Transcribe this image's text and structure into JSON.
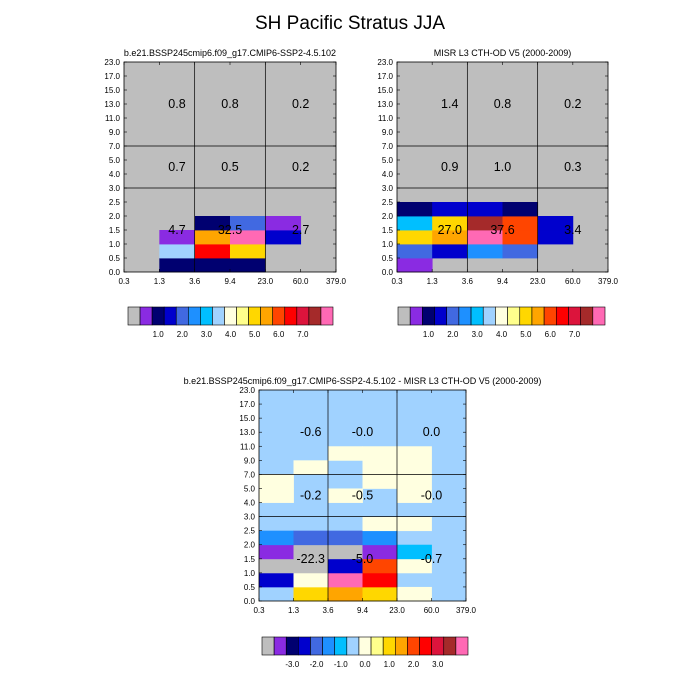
{
  "figure": {
    "title": "SH Pacific Stratus JJA"
  },
  "palettes": {
    "abs": [
      "#bebebe",
      "#8a2be2",
      "#000070",
      "#0000cd",
      "#4169e1",
      "#1e90ff",
      "#00bfff",
      "#a0d2ff",
      "#ffffe0",
      "#ffff8c",
      "#ffd700",
      "#ffa500",
      "#ff4500",
      "#ff0000",
      "#dc143c",
      "#a52a2a",
      "#ff69b4"
    ],
    "diff": [
      "#bebebe",
      "#8a2be2",
      "#000070",
      "#0000cd",
      "#4169e1",
      "#1e90ff",
      "#00bfff",
      "#a0d2ff",
      "#ffffe0",
      "#ffff8c",
      "#ffd700",
      "#ffa500",
      "#ff4500",
      "#ff0000",
      "#dc143c",
      "#a52a2a",
      "#ff69b4"
    ]
  },
  "chart_data": [
    {
      "type": "heatmap",
      "title": "b.e21.BSSP245cmip6.f09_g17.CMIP6-SSP2-4.5.102",
      "x_ticks": [
        "0.3",
        "1.3",
        "3.6",
        "9.4",
        "23.0",
        "60.0",
        "379.0"
      ],
      "y_ticks": [
        "0.0",
        "0.5",
        "1.0",
        "1.5",
        "2.0",
        "2.5",
        "3.0",
        "4.0",
        "5.0",
        "7.0",
        "9.0",
        "11.0",
        "13.0",
        "15.0",
        "17.0",
        "23.0"
      ],
      "x_ranges": [
        [
          1,
          3.6
        ],
        [
          3.6,
          23
        ],
        [
          23,
          379
        ]
      ],
      "y_ranges": [
        [
          0,
          3
        ],
        [
          3,
          7
        ],
        [
          7,
          23
        ]
      ],
      "cells": [
        {
          "x": "1.3",
          "y": "0.0",
          "level": 2
        },
        {
          "x": "3.6",
          "y": "0.0",
          "level": 2
        },
        {
          "x": "9.4",
          "y": "0.0",
          "level": 2
        },
        {
          "x": "1.3",
          "y": "0.5",
          "level": 7
        },
        {
          "x": "3.6",
          "y": "0.5",
          "level": 13
        },
        {
          "x": "9.4",
          "y": "0.5",
          "level": 10
        },
        {
          "x": "1.3",
          "y": "1.0",
          "level": 1
        },
        {
          "x": "3.6",
          "y": "1.0",
          "level": 11
        },
        {
          "x": "9.4",
          "y": "1.0",
          "level": 16
        },
        {
          "x": "23.0",
          "y": "1.0",
          "level": 3
        },
        {
          "x": "3.6",
          "y": "1.5",
          "level": 2
        },
        {
          "x": "9.4",
          "y": "1.5",
          "level": 4
        },
        {
          "x": "23.0",
          "y": "1.5",
          "level": 1
        }
      ],
      "region_labels": [
        {
          "text": "0.8",
          "xr": 0,
          "yr": 2
        },
        {
          "text": "0.8",
          "xr": 1,
          "yr": 2
        },
        {
          "text": "0.2",
          "xr": 2,
          "yr": 2
        },
        {
          "text": "0.7",
          "xr": 0,
          "yr": 1
        },
        {
          "text": "0.5",
          "xr": 1,
          "yr": 1
        },
        {
          "text": "0.2",
          "xr": 2,
          "yr": 1
        },
        {
          "text": "4.7",
          "xr": 0,
          "yr": 0
        },
        {
          "text": "32.5",
          "xr": 1,
          "yr": 0
        },
        {
          "text": "2.7",
          "xr": 2,
          "yr": 0
        }
      ],
      "colorbar": {
        "palette": "abs",
        "labels": [
          "1.0",
          "2.0",
          "3.0",
          "4.0",
          "5.0",
          "6.0",
          "7.0"
        ]
      }
    },
    {
      "type": "heatmap",
      "title": "MISR L3 CTH-OD V5 (2000-2009)",
      "x_ticks": [
        "0.3",
        "1.3",
        "3.6",
        "9.4",
        "23.0",
        "60.0",
        "379.0"
      ],
      "y_ticks": [
        "0.0",
        "0.5",
        "1.0",
        "1.5",
        "2.0",
        "2.5",
        "3.0",
        "4.0",
        "5.0",
        "7.0",
        "9.0",
        "11.0",
        "13.0",
        "15.0",
        "17.0",
        "23.0"
      ],
      "x_ranges": [
        [
          1,
          3.6
        ],
        [
          3.6,
          23
        ],
        [
          23,
          379
        ]
      ],
      "y_ranges": [
        [
          0,
          3
        ],
        [
          3,
          7
        ],
        [
          7,
          23
        ]
      ],
      "cells": [
        {
          "x": "0.3",
          "y": "0.0",
          "level": 1
        },
        {
          "x": "0.3",
          "y": "0.5",
          "level": 4
        },
        {
          "x": "1.3",
          "y": "0.5",
          "level": 3
        },
        {
          "x": "3.6",
          "y": "0.5",
          "level": 5
        },
        {
          "x": "9.4",
          "y": "0.5",
          "level": 4
        },
        {
          "x": "0.3",
          "y": "1.0",
          "level": 10
        },
        {
          "x": "1.3",
          "y": "1.0",
          "level": 11
        },
        {
          "x": "3.6",
          "y": "1.0",
          "level": 16
        },
        {
          "x": "9.4",
          "y": "1.0",
          "level": 12
        },
        {
          "x": "23.0",
          "y": "1.0",
          "level": 3
        },
        {
          "x": "0.3",
          "y": "1.5",
          "level": 6
        },
        {
          "x": "1.3",
          "y": "1.5",
          "level": 10
        },
        {
          "x": "3.6",
          "y": "1.5",
          "level": 15
        },
        {
          "x": "9.4",
          "y": "1.5",
          "level": 12
        },
        {
          "x": "23.0",
          "y": "1.5",
          "level": 3
        },
        {
          "x": "0.3",
          "y": "2.0",
          "level": 2
        },
        {
          "x": "1.3",
          "y": "2.0",
          "level": 3
        },
        {
          "x": "3.6",
          "y": "2.0",
          "level": 3
        },
        {
          "x": "9.4",
          "y": "2.0",
          "level": 2
        }
      ],
      "region_labels": [
        {
          "text": "1.4",
          "xr": 0,
          "yr": 2
        },
        {
          "text": "0.8",
          "xr": 1,
          "yr": 2
        },
        {
          "text": "0.2",
          "xr": 2,
          "yr": 2
        },
        {
          "text": "0.9",
          "xr": 0,
          "yr": 1
        },
        {
          "text": "1.0",
          "xr": 1,
          "yr": 1
        },
        {
          "text": "0.3",
          "xr": 2,
          "yr": 1
        },
        {
          "text": "27.0",
          "xr": 0,
          "yr": 0
        },
        {
          "text": "37.6",
          "xr": 1,
          "yr": 0
        },
        {
          "text": "3.4",
          "xr": 2,
          "yr": 0
        }
      ],
      "colorbar": {
        "palette": "abs",
        "labels": [
          "1.0",
          "2.0",
          "3.0",
          "4.0",
          "5.0",
          "6.0",
          "7.0"
        ]
      }
    },
    {
      "type": "heatmap",
      "title": "b.e21.BSSP245cmip6.f09_g17.CMIP6-SSP2-4.5.102 - MISR L3 CTH-OD V5 (2000-2009)",
      "x_ticks": [
        "0.3",
        "1.3",
        "3.6",
        "9.4",
        "23.0",
        "60.0",
        "379.0"
      ],
      "y_ticks": [
        "0.0",
        "0.5",
        "1.0",
        "1.5",
        "2.0",
        "2.5",
        "3.0",
        "4.0",
        "5.0",
        "7.0",
        "9.0",
        "11.0",
        "13.0",
        "15.0",
        "17.0",
        "23.0"
      ],
      "x_ranges": [
        [
          1,
          3.6
        ],
        [
          3.6,
          23
        ],
        [
          23,
          379
        ]
      ],
      "y_ranges": [
        [
          0,
          3
        ],
        [
          3,
          7
        ],
        [
          7,
          23
        ]
      ],
      "background_level": 7,
      "cells": [
        {
          "x": "1.3",
          "y": "0.0",
          "level": 10
        },
        {
          "x": "3.6",
          "y": "0.0",
          "level": 11
        },
        {
          "x": "9.4",
          "y": "0.0",
          "level": 10
        },
        {
          "x": "23.0",
          "y": "0.0",
          "level": 8
        },
        {
          "x": "0.3",
          "y": "0.5",
          "level": 3
        },
        {
          "x": "1.3",
          "y": "0.5",
          "level": 8
        },
        {
          "x": "3.6",
          "y": "0.5",
          "level": 16
        },
        {
          "x": "9.4",
          "y": "0.5",
          "level": 13
        },
        {
          "x": "0.3",
          "y": "1.0",
          "level": 0
        },
        {
          "x": "1.3",
          "y": "1.0",
          "level": 0
        },
        {
          "x": "3.6",
          "y": "1.0",
          "level": 3
        },
        {
          "x": "9.4",
          "y": "1.0",
          "level": 12
        },
        {
          "x": "23.0",
          "y": "1.0",
          "level": 8
        },
        {
          "x": "0.3",
          "y": "1.5",
          "level": 1
        },
        {
          "x": "1.3",
          "y": "1.5",
          "level": 0
        },
        {
          "x": "3.6",
          "y": "1.5",
          "level": 0
        },
        {
          "x": "9.4",
          "y": "1.5",
          "level": 1
        },
        {
          "x": "23.0",
          "y": "1.5",
          "level": 6
        },
        {
          "x": "0.3",
          "y": "2.0",
          "level": 5
        },
        {
          "x": "1.3",
          "y": "2.0",
          "level": 4
        },
        {
          "x": "3.6",
          "y": "2.0",
          "level": 4
        },
        {
          "x": "9.4",
          "y": "2.0",
          "level": 5
        },
        {
          "x": "9.4",
          "y": "2.5",
          "level": 8
        },
        {
          "x": "23.0",
          "y": "2.5",
          "level": 8
        },
        {
          "x": "0.3",
          "y": "4.0",
          "level": 8
        },
        {
          "x": "3.6",
          "y": "4.0",
          "level": 8
        },
        {
          "x": "23.0",
          "y": "4.0",
          "level": 8
        },
        {
          "x": "0.3",
          "y": "5.0",
          "level": 8
        },
        {
          "x": "9.4",
          "y": "5.0",
          "level": 8
        },
        {
          "x": "23.0",
          "y": "5.0",
          "level": 8
        },
        {
          "x": "1.3",
          "y": "7.0",
          "level": 8
        },
        {
          "x": "9.4",
          "y": "7.0",
          "level": 8
        },
        {
          "x": "23.0",
          "y": "7.0",
          "level": 8
        },
        {
          "x": "3.6",
          "y": "9.0",
          "level": 8
        },
        {
          "x": "9.4",
          "y": "9.0",
          "level": 8
        },
        {
          "x": "23.0",
          "y": "9.0",
          "level": 8
        }
      ],
      "region_labels": [
        {
          "text": "-0.6",
          "xr": 0,
          "yr": 2
        },
        {
          "text": "-0.0",
          "xr": 1,
          "yr": 2
        },
        {
          "text": "0.0",
          "xr": 2,
          "yr": 2
        },
        {
          "text": "-0.2",
          "xr": 0,
          "yr": 1
        },
        {
          "text": "-0.5",
          "xr": 1,
          "yr": 1
        },
        {
          "text": "-0.0",
          "xr": 2,
          "yr": 1
        },
        {
          "text": "-22.3",
          "xr": 0,
          "yr": 0
        },
        {
          "text": "-5.0",
          "xr": 1,
          "yr": 0
        },
        {
          "text": "-0.7",
          "xr": 2,
          "yr": 0
        }
      ],
      "colorbar": {
        "palette": "diff",
        "labels": [
          "-3.0",
          "-2.0",
          "-1.0",
          "0.0",
          "1.0",
          "2.0",
          "3.0"
        ]
      }
    }
  ]
}
